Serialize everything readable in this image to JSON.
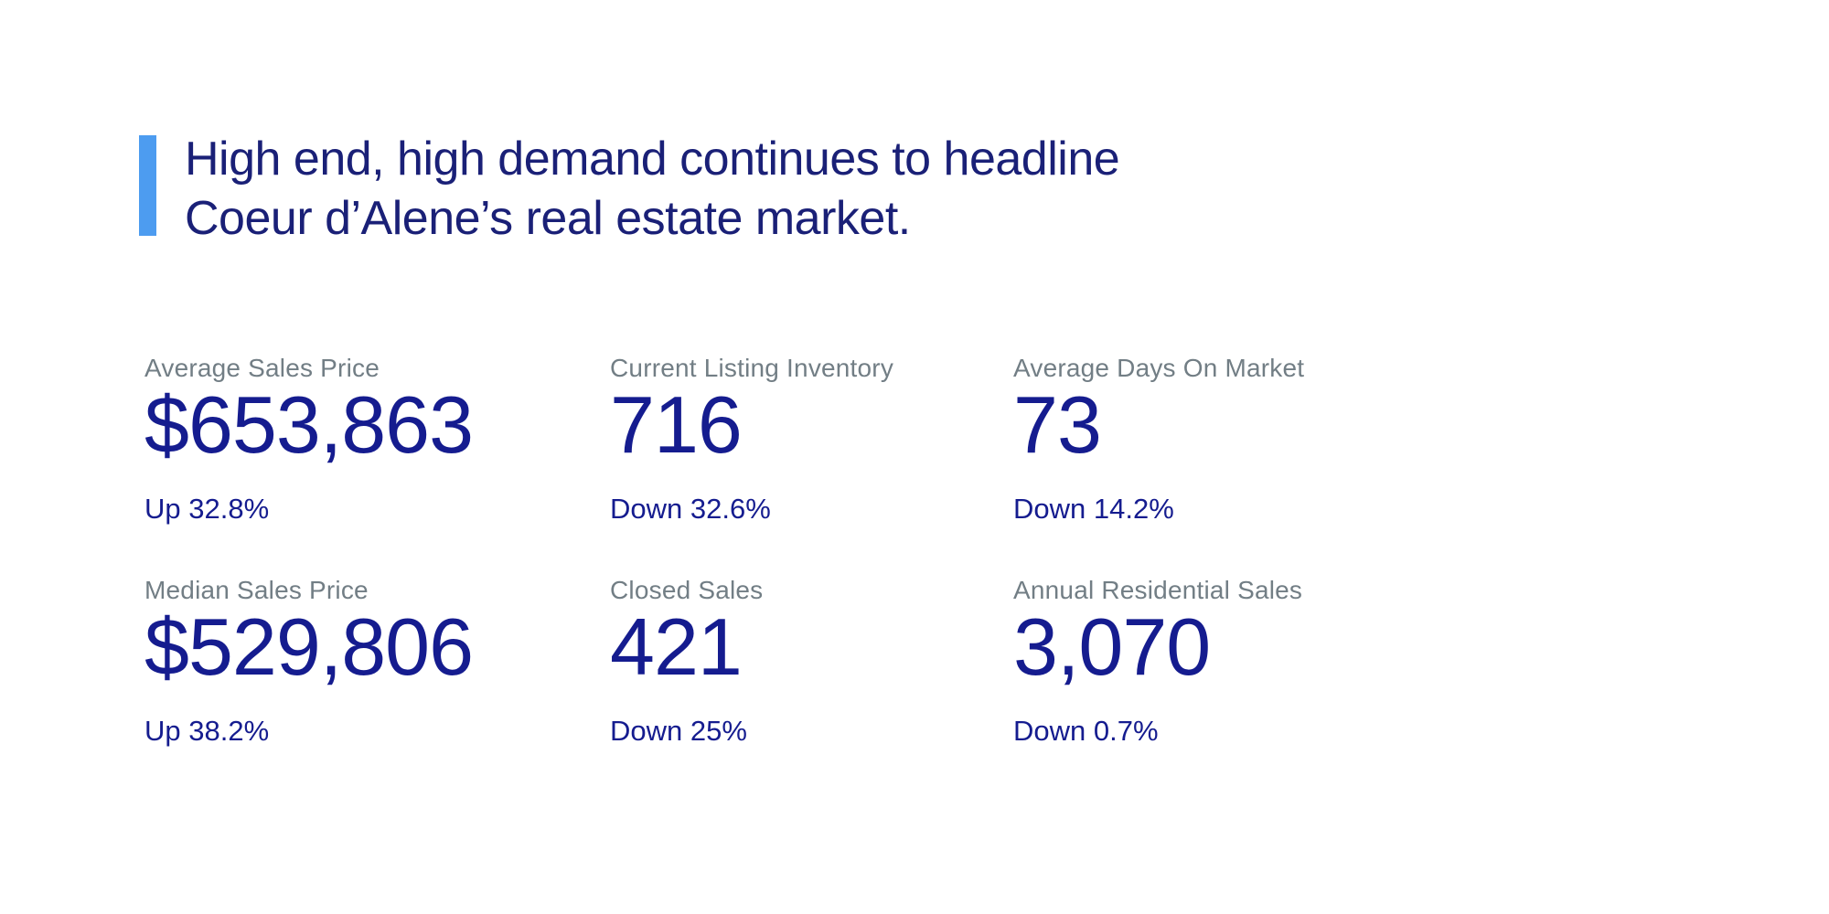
{
  "headline": {
    "line1": "High end, high demand continues to headline",
    "line2": "Coeur d’Alene’s real estate market."
  },
  "stats": [
    {
      "label": "Average Sales Price",
      "value": "$653,863",
      "change": "Up 32.8%"
    },
    {
      "label": "Current Listing Inventory",
      "value": "716",
      "change": "Down 32.6%"
    },
    {
      "label": "Average Days On Market",
      "value": "73",
      "change": "Down 14.2%"
    },
    {
      "label": "Median Sales Price",
      "value": "$529,806",
      "change": "Up 38.2%"
    },
    {
      "label": "Closed Sales",
      "value": "421",
      "change": "Down 25%"
    },
    {
      "label": "Annual Residential Sales",
      "value": "3,070",
      "change": "Down 0.7%"
    }
  ],
  "colors": {
    "background": "#FFFFFF",
    "accent_bar": "#4D9CF0",
    "headline_text": "#1A2077",
    "stat_value": "#151C8F",
    "stat_change": "#151C8F",
    "stat_label": "#727E85"
  },
  "chart_data": {
    "type": "table",
    "title": "High end, high demand continues to headline Coeur d’Alene’s real estate market.",
    "columns": [
      "Metric",
      "Value",
      "Change Direction",
      "Change Percent"
    ],
    "rows": [
      [
        "Average Sales Price",
        653863,
        "Up",
        32.8
      ],
      [
        "Current Listing Inventory",
        716,
        "Down",
        32.6
      ],
      [
        "Average Days On Market",
        73,
        "Down",
        14.2
      ],
      [
        "Median Sales Price",
        529806,
        "Up",
        38.2
      ],
      [
        "Closed Sales",
        421,
        "Down",
        25
      ],
      [
        "Annual Residential Sales",
        3070,
        "Down",
        0.7
      ]
    ],
    "layout": "2 rows x 3 columns of KPI stat blocks, headline with light-blue accent bar top-left"
  }
}
